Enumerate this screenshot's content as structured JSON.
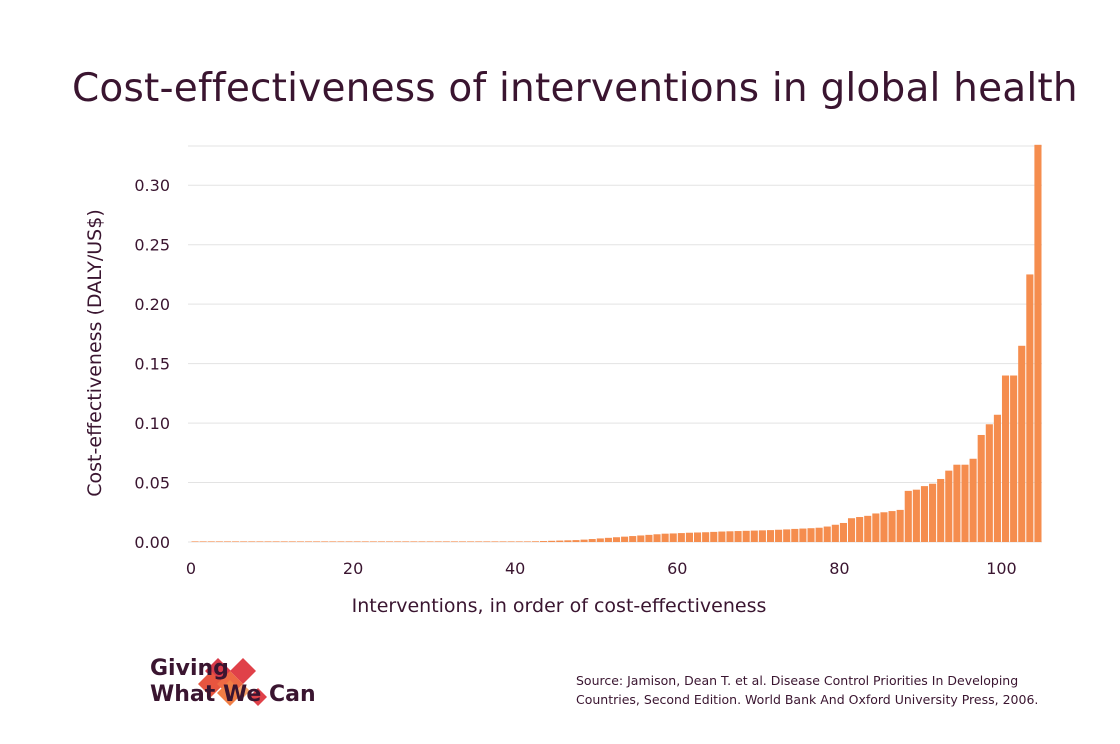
{
  "chart_data": {
    "type": "bar",
    "title": "Cost-effectiveness of interventions in global health",
    "xlabel": "Interventions, in order of cost-effectiveness",
    "ylabel": "Cost-effectiveness (DALY/US$)",
    "x_ticks": [
      "0",
      "20",
      "40",
      "60",
      "80",
      "100"
    ],
    "y_ticks": [
      "0.00",
      "0.05",
      "0.10",
      "0.15",
      "0.20",
      "0.25",
      "0.30"
    ],
    "xlim": [
      0,
      105
    ],
    "ylim": [
      0,
      0.333
    ],
    "grid": "horizontal",
    "bar_color": "#f58d4e",
    "values": [
      0.0001,
      0.0001,
      0.0001,
      0.0001,
      0.0001,
      0.0001,
      0.0001,
      0.0001,
      0.0001,
      0.0001,
      0.0001,
      0.0001,
      0.0001,
      0.0001,
      0.0001,
      0.0001,
      0.0001,
      0.0001,
      0.0001,
      0.0001,
      0.0002,
      0.0002,
      0.0002,
      0.0002,
      0.0002,
      0.0002,
      0.0002,
      0.0002,
      0.0002,
      0.0002,
      0.0002,
      0.0002,
      0.0003,
      0.0003,
      0.0003,
      0.0003,
      0.0003,
      0.0004,
      0.0004,
      0.0004,
      0.0005,
      0.0005,
      0.0006,
      0.0008,
      0.001,
      0.0012,
      0.0014,
      0.0016,
      0.002,
      0.0025,
      0.003,
      0.0035,
      0.004,
      0.0045,
      0.005,
      0.0055,
      0.006,
      0.0065,
      0.007,
      0.0072,
      0.0075,
      0.0078,
      0.008,
      0.0082,
      0.0085,
      0.0088,
      0.009,
      0.0092,
      0.0094,
      0.0096,
      0.0098,
      0.01,
      0.0103,
      0.0106,
      0.011,
      0.0113,
      0.0116,
      0.012,
      0.013,
      0.0145,
      0.016,
      0.02,
      0.021,
      0.022,
      0.024,
      0.025,
      0.026,
      0.027,
      0.043,
      0.044,
      0.047,
      0.049,
      0.053,
      0.06,
      0.065,
      0.065,
      0.07,
      0.09,
      0.099,
      0.107,
      0.14,
      0.14,
      0.165,
      0.225,
      0.334
    ]
  },
  "brand": {
    "line1": "Giving",
    "line2": "What We Can",
    "logo_colors": [
      "#d83a4a",
      "#e8553f",
      "#f07e45",
      "#f5a26a"
    ]
  },
  "source": {
    "line1": "Source: Jamison, Dean T. et al. Disease Control Priorities In Developing",
    "line2": "Countries, Second Edition. World Bank And Oxford University Press, 2006."
  }
}
